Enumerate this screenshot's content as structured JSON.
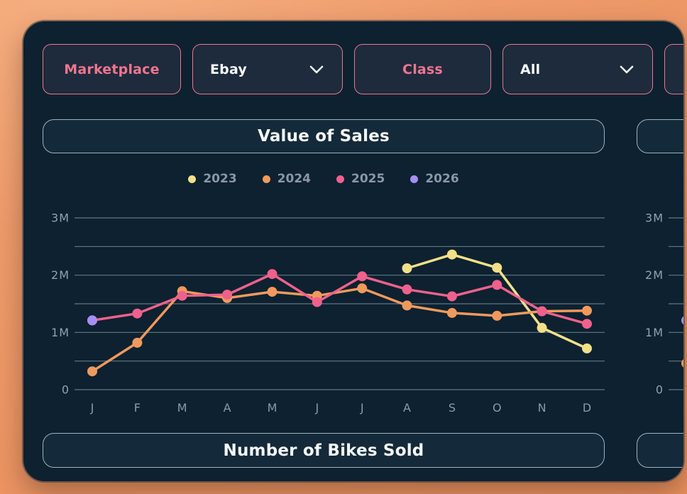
{
  "theme": {
    "background_orange": "#ED9A6A",
    "card_color": "#0D2130",
    "accent_pink": "#F0758E",
    "title_border": "#9DB3C1",
    "text_white": "#F5F8FA",
    "text_gray": "#8B97A8"
  },
  "filters": {
    "marketplace_label": "Marketplace",
    "marketplace_value": "Ebay",
    "class_label": "Class",
    "class_value": "All"
  },
  "panels": [
    {
      "title": "Value of Sales",
      "bottom_title": "Number of Bikes Sold",
      "legend": [
        {
          "label": "2023",
          "color": "#F2E088"
        },
        {
          "label": "2024",
          "color": "#EF9A5C"
        },
        {
          "label": "2025",
          "color": "#EF618C"
        },
        {
          "label": "2026",
          "color": "#A58EF4"
        }
      ]
    },
    {
      "title": "",
      "bottom_title": "",
      "legend": []
    }
  ],
  "chart_data": [
    {
      "type": "line",
      "title": "Value of Sales",
      "unit": "millions",
      "categories": [
        "J",
        "F",
        "M",
        "A",
        "M",
        "J",
        "J",
        "A",
        "S",
        "O",
        "N",
        "D"
      ],
      "ylim": [
        0,
        3
      ],
      "gridline_step": 0.5,
      "grid": true,
      "legend_position": "top",
      "yticks": [
        {
          "value": 0,
          "label": "0"
        },
        {
          "value": 1,
          "label": "1M"
        },
        {
          "value": 2,
          "label": "2M"
        },
        {
          "value": 3,
          "label": "3M"
        }
      ],
      "series": [
        {
          "name": "2023",
          "color": "#F2E088",
          "values": [
            null,
            null,
            null,
            null,
            null,
            null,
            null,
            2.12,
            2.36,
            2.13,
            1.08,
            0.72
          ]
        },
        {
          "name": "2024",
          "color": "#EF9A5C",
          "values": [
            0.32,
            0.82,
            1.72,
            1.6,
            1.71,
            1.64,
            1.77,
            1.47,
            1.34,
            1.29,
            1.37,
            1.38
          ]
        },
        {
          "name": "2025",
          "color": "#EF618C",
          "values": [
            1.21,
            1.33,
            1.64,
            1.66,
            2.02,
            1.53,
            1.98,
            1.75,
            1.63,
            1.83,
            1.37,
            1.15
          ]
        },
        {
          "name": "2026",
          "color": "#A58EF4",
          "values": [
            1.21,
            null,
            null,
            null,
            null,
            null,
            null,
            null,
            null,
            null,
            null,
            null
          ]
        }
      ]
    },
    {
      "type": "line",
      "title": "",
      "unit": "millions",
      "categories": [
        "J",
        "F",
        "M",
        "A",
        "M",
        "J",
        "J",
        "A",
        "S",
        "O",
        "N",
        "D"
      ],
      "ylim": [
        0,
        3
      ],
      "gridline_step": 0.5,
      "grid": true,
      "yticks": [
        {
          "value": 0,
          "label": "0"
        },
        {
          "value": 1,
          "label": "1M"
        },
        {
          "value": 2,
          "label": "2M"
        },
        {
          "value": 3,
          "label": "3M"
        }
      ],
      "series": [
        {
          "name": "2024",
          "color": "#EF9A5C",
          "values": [
            0.46,
            null,
            null,
            null,
            null,
            null,
            null,
            null,
            null,
            null,
            null,
            null
          ]
        },
        {
          "name": "2026",
          "color": "#A58EF4",
          "values": [
            1.21,
            null,
            null,
            null,
            null,
            null,
            null,
            null,
            null,
            null,
            null,
            null
          ]
        }
      ]
    }
  ]
}
